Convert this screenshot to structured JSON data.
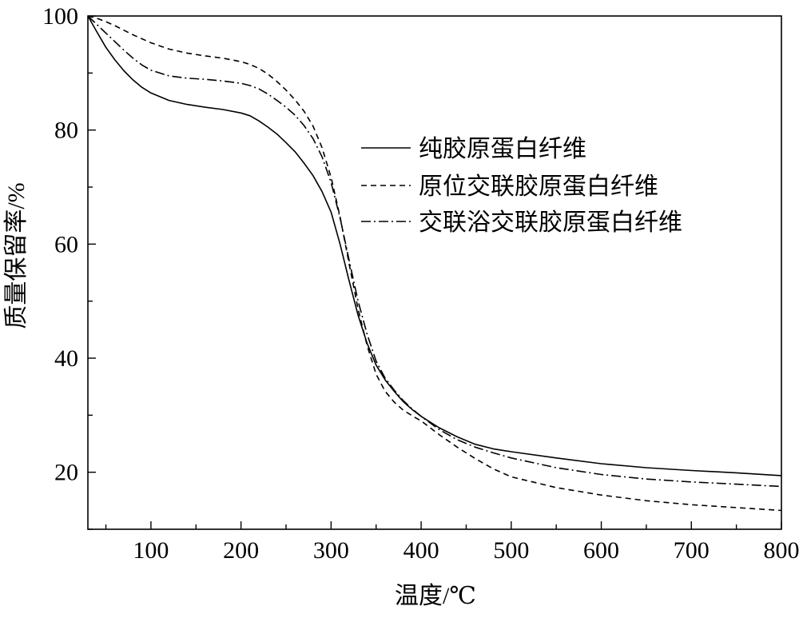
{
  "chart_data": {
    "type": "line",
    "title": "",
    "xlabel": "温度/℃",
    "ylabel": "质量保留率/%",
    "xlim": [
      30,
      800
    ],
    "ylim": [
      10,
      100
    ],
    "xticks": [
      100,
      200,
      300,
      400,
      500,
      600,
      700,
      800
    ],
    "yticks": [
      20,
      40,
      60,
      80,
      100
    ],
    "legend_position": "right",
    "grid": false,
    "series": [
      {
        "name": "纯胶原蛋白纤维",
        "line_style": "solid",
        "color": "#000000",
        "points": [
          [
            30,
            100
          ],
          [
            40,
            97.2
          ],
          [
            50,
            94.5
          ],
          [
            60,
            92.3
          ],
          [
            70,
            90.4
          ],
          [
            80,
            88.8
          ],
          [
            90,
            87.5
          ],
          [
            100,
            86.5
          ],
          [
            120,
            85.2
          ],
          [
            140,
            84.5
          ],
          [
            160,
            84.0
          ],
          [
            180,
            83.6
          ],
          [
            200,
            83.0
          ],
          [
            210,
            82.5
          ],
          [
            220,
            81.6
          ],
          [
            230,
            80.5
          ],
          [
            240,
            79.3
          ],
          [
            250,
            77.8
          ],
          [
            260,
            76.2
          ],
          [
            270,
            74.2
          ],
          [
            280,
            72.0
          ],
          [
            290,
            69.2
          ],
          [
            300,
            65.6
          ],
          [
            310,
            60.0
          ],
          [
            320,
            53.6
          ],
          [
            330,
            47.5
          ],
          [
            340,
            42.6
          ],
          [
            350,
            38.8
          ],
          [
            360,
            36.2
          ],
          [
            370,
            34.2
          ],
          [
            380,
            32.4
          ],
          [
            390,
            31.0
          ],
          [
            400,
            29.8
          ],
          [
            420,
            27.8
          ],
          [
            440,
            26.2
          ],
          [
            460,
            24.9
          ],
          [
            480,
            24.1
          ],
          [
            500,
            23.6
          ],
          [
            550,
            22.5
          ],
          [
            600,
            21.5
          ],
          [
            650,
            20.8
          ],
          [
            700,
            20.3
          ],
          [
            750,
            19.9
          ],
          [
            800,
            19.4
          ]
        ]
      },
      {
        "name": "原位交联胶原蛋白纤维",
        "line_style": "dashed",
        "color": "#000000",
        "points": [
          [
            30,
            100
          ],
          [
            40,
            99.6
          ],
          [
            50,
            99.0
          ],
          [
            60,
            98.3
          ],
          [
            70,
            97.5
          ],
          [
            80,
            96.7
          ],
          [
            90,
            96.0
          ],
          [
            100,
            95.3
          ],
          [
            120,
            94.2
          ],
          [
            140,
            93.5
          ],
          [
            160,
            93.0
          ],
          [
            180,
            92.6
          ],
          [
            200,
            92.0
          ],
          [
            210,
            91.5
          ],
          [
            220,
            90.8
          ],
          [
            230,
            89.8
          ],
          [
            240,
            88.5
          ],
          [
            250,
            87.0
          ],
          [
            260,
            85.3
          ],
          [
            270,
            83.3
          ],
          [
            280,
            80.7
          ],
          [
            290,
            76.9
          ],
          [
            300,
            71.7
          ],
          [
            310,
            64.8
          ],
          [
            320,
            56.6
          ],
          [
            330,
            48.6
          ],
          [
            340,
            42.2
          ],
          [
            350,
            37.2
          ],
          [
            360,
            34.2
          ],
          [
            370,
            32.3
          ],
          [
            380,
            30.9
          ],
          [
            390,
            29.9
          ],
          [
            400,
            29.0
          ],
          [
            420,
            26.6
          ],
          [
            440,
            24.4
          ],
          [
            460,
            22.4
          ],
          [
            480,
            20.6
          ],
          [
            500,
            19.2
          ],
          [
            550,
            17.3
          ],
          [
            600,
            16.0
          ],
          [
            650,
            15.0
          ],
          [
            700,
            14.3
          ],
          [
            750,
            13.8
          ],
          [
            800,
            13.3
          ]
        ]
      },
      {
        "name": "交联浴交联胶原蛋白纤维",
        "line_style": "dash-dot",
        "color": "#000000",
        "points": [
          [
            30,
            100
          ],
          [
            40,
            98.5
          ],
          [
            50,
            97.0
          ],
          [
            60,
            95.5
          ],
          [
            70,
            94.0
          ],
          [
            80,
            92.6
          ],
          [
            90,
            91.4
          ],
          [
            100,
            90.5
          ],
          [
            120,
            89.5
          ],
          [
            140,
            89.1
          ],
          [
            160,
            88.9
          ],
          [
            180,
            88.6
          ],
          [
            200,
            88.2
          ],
          [
            210,
            87.8
          ],
          [
            220,
            87.2
          ],
          [
            230,
            86.3
          ],
          [
            240,
            85.2
          ],
          [
            250,
            84.0
          ],
          [
            260,
            82.6
          ],
          [
            270,
            80.8
          ],
          [
            280,
            78.5
          ],
          [
            290,
            75.3
          ],
          [
            300,
            70.8
          ],
          [
            310,
            64.6
          ],
          [
            320,
            57.2
          ],
          [
            330,
            50.0
          ],
          [
            340,
            44.2
          ],
          [
            350,
            39.5
          ],
          [
            360,
            36.5
          ],
          [
            370,
            34.4
          ],
          [
            380,
            32.6
          ],
          [
            390,
            31.1
          ],
          [
            400,
            29.8
          ],
          [
            420,
            27.5
          ],
          [
            440,
            25.7
          ],
          [
            460,
            24.4
          ],
          [
            480,
            23.4
          ],
          [
            500,
            22.5
          ],
          [
            550,
            20.8
          ],
          [
            600,
            19.6
          ],
          [
            650,
            18.8
          ],
          [
            700,
            18.3
          ],
          [
            750,
            17.9
          ],
          [
            800,
            17.5
          ]
        ]
      }
    ]
  }
}
